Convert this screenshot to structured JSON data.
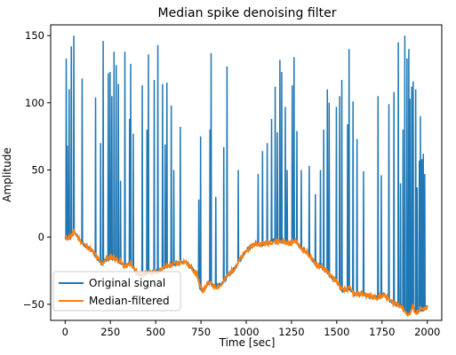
{
  "chart_data": {
    "type": "line",
    "title": "Median spike denoising filter",
    "xlabel": "Time [sec]",
    "ylabel": "Amplitude",
    "xlim": [
      -80,
      2080
    ],
    "ylim": [
      -62,
      158
    ],
    "xticks": [
      0,
      250,
      500,
      750,
      1000,
      1250,
      1500,
      1750,
      2000
    ],
    "yticks": [
      -50,
      0,
      50,
      100,
      150
    ],
    "grid": false,
    "legend_position": "lower left",
    "series": [
      {
        "name": "Original signal",
        "color": "#1f77b4",
        "baseline": {
          "x": [
            0,
            30,
            50,
            80,
            100,
            130,
            160,
            200,
            230,
            260,
            300,
            330,
            360,
            400,
            430,
            460,
            500,
            530,
            560,
            600,
            630,
            660,
            700,
            730,
            745,
            760,
            790,
            830,
            860,
            900,
            930,
            960,
            1000,
            1050,
            1100,
            1150,
            1200,
            1250,
            1270,
            1300,
            1340,
            1380,
            1420,
            1460,
            1500,
            1530,
            1570,
            1600,
            1640,
            1680,
            1720,
            1760,
            1800,
            1840,
            1860,
            1880,
            1900,
            1920,
            1940,
            1960,
            1980,
            2000
          ],
          "y": [
            -1,
            0,
            4,
            -2,
            -5,
            -8,
            -12,
            -20,
            -16,
            -15,
            -18,
            -22,
            -20,
            -27,
            -28,
            -26,
            -26,
            -24,
            -22,
            -20,
            -19,
            -18,
            -23,
            -28,
            -38,
            -40,
            -34,
            -37,
            -36,
            -28,
            -24,
            -18,
            -10,
            -5,
            -5,
            -3,
            -3,
            -5,
            -2,
            -8,
            -12,
            -20,
            -22,
            -28,
            -33,
            -40,
            -38,
            -43,
            -42,
            -44,
            -45,
            -43,
            -48,
            -50,
            -52,
            -56,
            -58,
            -52,
            -57,
            -53,
            -55,
            -52
          ]
        },
        "spikes": [
          {
            "x": 5,
            "y": 133
          },
          {
            "x": 12,
            "y": 68
          },
          {
            "x": 22,
            "y": 110
          },
          {
            "x": 34,
            "y": 142
          },
          {
            "x": 48,
            "y": 150
          },
          {
            "x": 93,
            "y": 118
          },
          {
            "x": 168,
            "y": 104
          },
          {
            "x": 196,
            "y": 70
          },
          {
            "x": 210,
            "y": 146
          },
          {
            "x": 238,
            "y": 122
          },
          {
            "x": 248,
            "y": 123
          },
          {
            "x": 258,
            "y": 105
          },
          {
            "x": 270,
            "y": 138
          },
          {
            "x": 282,
            "y": 128
          },
          {
            "x": 294,
            "y": 114
          },
          {
            "x": 305,
            "y": 42
          },
          {
            "x": 330,
            "y": 138
          },
          {
            "x": 355,
            "y": 88
          },
          {
            "x": 362,
            "y": 129
          },
          {
            "x": 376,
            "y": 77
          },
          {
            "x": 425,
            "y": 113
          },
          {
            "x": 452,
            "y": 80
          },
          {
            "x": 460,
            "y": 136
          },
          {
            "x": 492,
            "y": 117
          },
          {
            "x": 512,
            "y": 143
          },
          {
            "x": 537,
            "y": 114
          },
          {
            "x": 552,
            "y": 69
          },
          {
            "x": 562,
            "y": 115
          },
          {
            "x": 586,
            "y": 98
          },
          {
            "x": 600,
            "y": 50
          },
          {
            "x": 635,
            "y": 82
          },
          {
            "x": 738,
            "y": 28
          },
          {
            "x": 748,
            "y": 75
          },
          {
            "x": 800,
            "y": 80
          },
          {
            "x": 805,
            "y": 137
          },
          {
            "x": 831,
            "y": 30
          },
          {
            "x": 876,
            "y": 67
          },
          {
            "x": 893,
            "y": 127
          },
          {
            "x": 955,
            "y": 50
          },
          {
            "x": 1065,
            "y": 47
          },
          {
            "x": 1090,
            "y": 64
          },
          {
            "x": 1115,
            "y": 70
          },
          {
            "x": 1140,
            "y": 88
          },
          {
            "x": 1160,
            "y": 112
          },
          {
            "x": 1172,
            "y": 78
          },
          {
            "x": 1185,
            "y": 132
          },
          {
            "x": 1195,
            "y": 123
          },
          {
            "x": 1215,
            "y": 97
          },
          {
            "x": 1225,
            "y": 50
          },
          {
            "x": 1253,
            "y": 113
          },
          {
            "x": 1264,
            "y": 134
          },
          {
            "x": 1279,
            "y": 79
          },
          {
            "x": 1304,
            "y": 50
          },
          {
            "x": 1348,
            "y": 53
          },
          {
            "x": 1382,
            "y": 32
          },
          {
            "x": 1410,
            "y": 50
          },
          {
            "x": 1428,
            "y": 80
          },
          {
            "x": 1448,
            "y": 110
          },
          {
            "x": 1458,
            "y": 100
          },
          {
            "x": 1497,
            "y": 97
          },
          {
            "x": 1515,
            "y": 105
          },
          {
            "x": 1527,
            "y": 117
          },
          {
            "x": 1560,
            "y": 84
          },
          {
            "x": 1568,
            "y": 140
          },
          {
            "x": 1590,
            "y": 101
          },
          {
            "x": 1611,
            "y": 73
          },
          {
            "x": 1648,
            "y": 49
          },
          {
            "x": 1727,
            "y": 105
          },
          {
            "x": 1746,
            "y": 46
          },
          {
            "x": 1787,
            "y": 99
          },
          {
            "x": 1816,
            "y": 108
          },
          {
            "x": 1840,
            "y": 145
          },
          {
            "x": 1852,
            "y": 40
          },
          {
            "x": 1866,
            "y": 80
          },
          {
            "x": 1876,
            "y": 150
          },
          {
            "x": 1888,
            "y": 133
          },
          {
            "x": 1897,
            "y": 140
          },
          {
            "x": 1904,
            "y": 103
          },
          {
            "x": 1913,
            "y": 112
          },
          {
            "x": 1922,
            "y": 116
          },
          {
            "x": 1935,
            "y": 110
          },
          {
            "x": 1944,
            "y": 37
          },
          {
            "x": 1955,
            "y": 57
          },
          {
            "x": 1962,
            "y": 90
          },
          {
            "x": 1970,
            "y": 58
          },
          {
            "x": 1978,
            "y": 62
          },
          {
            "x": 1986,
            "y": 47
          }
        ]
      },
      {
        "name": "Median-filtered",
        "color": "#ff7f0e",
        "x": [
          0,
          30,
          50,
          80,
          100,
          130,
          160,
          200,
          230,
          260,
          300,
          330,
          360,
          400,
          430,
          460,
          500,
          530,
          560,
          600,
          630,
          660,
          700,
          730,
          745,
          760,
          790,
          830,
          860,
          900,
          930,
          960,
          1000,
          1050,
          1100,
          1150,
          1200,
          1250,
          1270,
          1300,
          1340,
          1380,
          1420,
          1460,
          1500,
          1530,
          1570,
          1600,
          1640,
          1680,
          1720,
          1760,
          1800,
          1840,
          1860,
          1880,
          1900,
          1920,
          1940,
          1960,
          1980,
          2000
        ],
        "y": [
          -1,
          0,
          4,
          -2,
          -5,
          -8,
          -12,
          -20,
          -16,
          -15,
          -18,
          -22,
          -20,
          -27,
          -28,
          -26,
          -26,
          -24,
          -22,
          -20,
          -19,
          -18,
          -23,
          -28,
          -38,
          -40,
          -34,
          -37,
          -36,
          -28,
          -24,
          -18,
          -10,
          -5,
          -5,
          -3,
          -3,
          -5,
          -2,
          -8,
          -12,
          -20,
          -22,
          -28,
          -33,
          -40,
          -38,
          -43,
          -42,
          -44,
          -45,
          -43,
          -48,
          -50,
          -52,
          -56,
          -58,
          -52,
          -57,
          -53,
          -55,
          -52
        ]
      }
    ]
  }
}
